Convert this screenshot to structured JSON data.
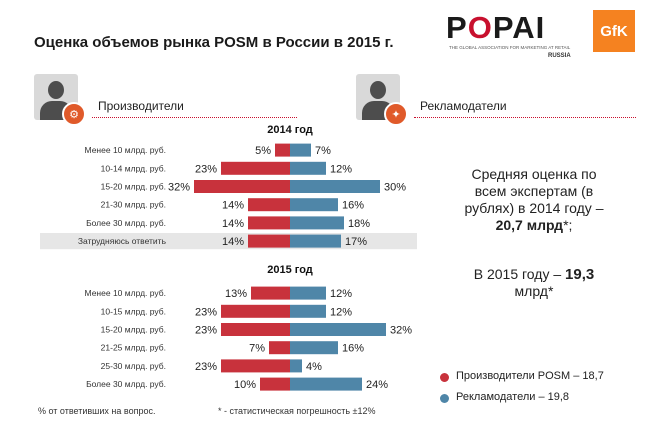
{
  "title": "Оценка объемов рынка POSM в России в 2015 г.",
  "logo": {
    "popai": "POPAI",
    "tagline": "THE GLOBAL ASSOCIATION FOR MARKETING AT RETAIL",
    "russia": "RUSSIA",
    "gfk": "GfK"
  },
  "groups": {
    "producers": "Производители",
    "advertisers": "Рекламодатели"
  },
  "colors": {
    "producers": "#c8323c",
    "advertisers": "#4f86a8",
    "highlight_row": "#e6e6e6"
  },
  "chart_data": [
    {
      "type": "bar",
      "title": "2014 год",
      "categories": [
        "Менее 10 млрд. руб.",
        "10-14 млрд. руб.",
        "15-20 млрд. руб.",
        "21-30 млрд. руб.",
        "Более 30 млрд. руб.",
        "Затрудняюсь ответить"
      ],
      "series": [
        {
          "name": "Производители POSM – 18,7",
          "values": [
            5,
            23,
            32,
            14,
            14,
            14
          ]
        },
        {
          "name": "Рекламодатели – 19,8",
          "values": [
            7,
            12,
            30,
            16,
            18,
            17
          ]
        }
      ],
      "highlight_index": 5,
      "unit": "%"
    },
    {
      "type": "bar",
      "title": "2015 год",
      "categories": [
        "Менее 10 млрд. руб.",
        "10-15 млрд. руб.",
        "15-20 млрд. руб.",
        "21-25 млрд. руб.",
        "25-30 млрд. руб.",
        "Более 30 млрд. руб."
      ],
      "series": [
        {
          "name": "Производители POSM – 18,7",
          "values": [
            13,
            23,
            23,
            7,
            23,
            10
          ]
        },
        {
          "name": "Рекламодатели – 19,8",
          "values": [
            12,
            12,
            32,
            16,
            4,
            24
          ]
        }
      ],
      "unit": "%"
    }
  ],
  "side": {
    "line1": "Средняя оценка по",
    "line2": "всем экспертам (в",
    "line3": "рублях) в 2014 году –",
    "value2014": "20,7 млрд",
    "value2014_suffix": "*;",
    "line5_pre": "В 2015 году – ",
    "value2015": "19,3",
    "line6": "млрд*"
  },
  "legend": {
    "producers": "Производители POSM – 18,7",
    "advertisers": "Рекламодатели – 19,8"
  },
  "footnotes": {
    "left": "% от ответивших на вопрос.",
    "right": "* - статистическая погрешность ±12%"
  }
}
